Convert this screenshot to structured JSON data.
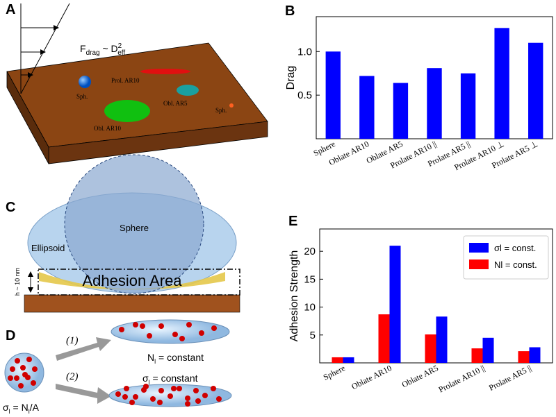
{
  "panels": {
    "A": {
      "label": "A",
      "force": {
        "main": "F",
        "sub": "drag",
        "mid": " ~ D",
        "sup": "2",
        "sub2": "eff"
      },
      "shapes": [
        "Sph.",
        "Prol. AR10",
        "Obl. AR5",
        "Obl. AR10",
        "Sph."
      ]
    },
    "C": {
      "label": "C",
      "sphere": "Sphere",
      "ellipsoid": "Ellipsoid",
      "area": "Adhesion Area",
      "height": "h ~ 10 nm"
    },
    "D": {
      "label": "D",
      "step1": "(1)",
      "step2": "(2)",
      "n_const": {
        "main": "N",
        "sub": "l",
        "rest": " = constant"
      },
      "s_const": {
        "main": "σ",
        "sub": "l",
        "rest": " = constant"
      },
      "formula": {
        "main": "σ",
        "sub": "l",
        "mid": " = N",
        "sub2": "l",
        "rest": "/A"
      }
    }
  },
  "chart_data": [
    {
      "type": "bar",
      "panel_label": "B",
      "ylabel": "Drag",
      "categories": [
        "Sphere",
        "Oblate AR10",
        "Oblate AR5",
        "Prolate AR10 ||",
        "Prolate AR5 ||",
        "Prolate AR10 ⊥",
        "Prolate AR5 ⊥"
      ],
      "values": [
        1.0,
        0.72,
        0.64,
        0.81,
        0.75,
        1.27,
        1.1
      ],
      "color": "#0000ff",
      "ylim": [
        0,
        1.4
      ],
      "yticks": [
        0.5,
        {
          "value": 1,
          "label": "1.0"
        }
      ]
    },
    {
      "type": "bar",
      "panel_label": "E",
      "ylabel": "Adhesion Strength",
      "categories": [
        "Sphere",
        "Oblate AR10",
        "Oblate AR5",
        "Prolate AR10 ||",
        "Prolate AR5 ||"
      ],
      "series": [
        {
          "name": "σl = const.",
          "color": "#0000ff",
          "values": [
            1.0,
            21,
            8.3,
            4.5,
            2.8
          ]
        },
        {
          "name": "Nl = const.",
          "color": "#ff0000",
          "values": [
            1.0,
            8.7,
            5.1,
            2.6,
            2.1
          ]
        }
      ],
      "ylim": [
        0,
        24
      ],
      "yticks": [
        5,
        10,
        15,
        20
      ],
      "legend": "upper right"
    }
  ]
}
